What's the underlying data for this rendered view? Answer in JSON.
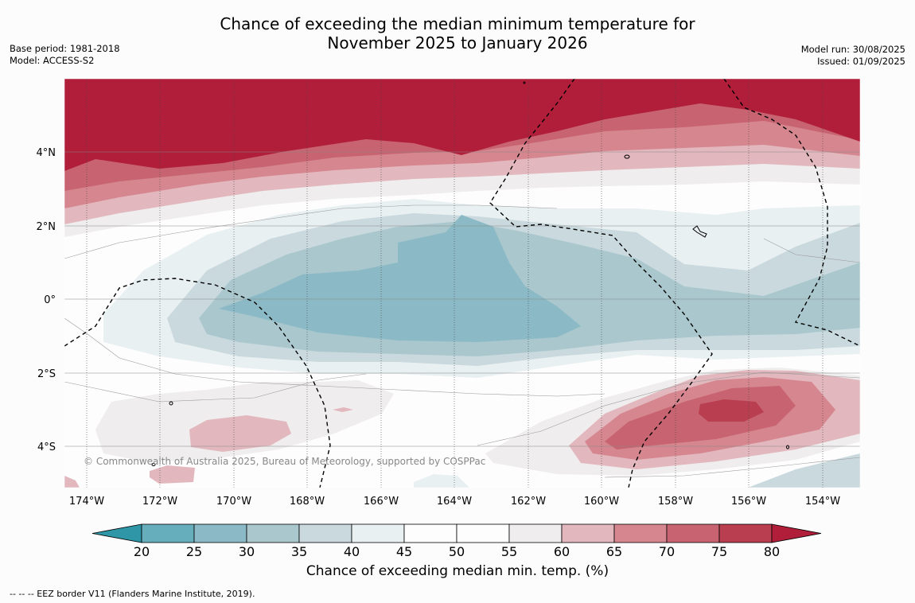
{
  "title": {
    "line1": "Chance of exceeding the median minimum temperature for",
    "line2": "November 2025 to January 2026"
  },
  "meta": {
    "base_period": "Base period: 1981-2018",
    "model": "Model: ACCESS-S2",
    "model_run": "Model run: 30/08/2025",
    "issued": "Issued: 01/09/2025"
  },
  "map": {
    "lat_labels": [
      "4°N",
      "2°N",
      "0°",
      "2°S",
      "4°S"
    ],
    "lon_labels": [
      "174°W",
      "172°W",
      "170°W",
      "168°W",
      "166°W",
      "164°W",
      "162°W",
      "160°W",
      "158°W",
      "156°W",
      "154°W"
    ],
    "copyright": "© Commonwealth of Australia 2025, Bureau of Meteorology, supported by COSPPac"
  },
  "colorbar": {
    "ticks": [
      "20",
      "25",
      "30",
      "35",
      "40",
      "45",
      "50",
      "55",
      "60",
      "65",
      "70",
      "75",
      "80"
    ],
    "colors": [
      "#2e96a6",
      "#66aebc",
      "#8bbac6",
      "#a9c7cd",
      "#c9d9de",
      "#e9f0f2",
      "#fdfdfd",
      "#fdfdfd",
      "#efeded",
      "#e2b8be",
      "#d6868f",
      "#c86471",
      "#b83e50",
      "#b01e3a"
    ],
    "label": "Chance of exceeding median min. temp. (%)"
  },
  "footnote": "--  --  -- EEZ border V11 (Flanders Marine Institute, 2019)."
}
